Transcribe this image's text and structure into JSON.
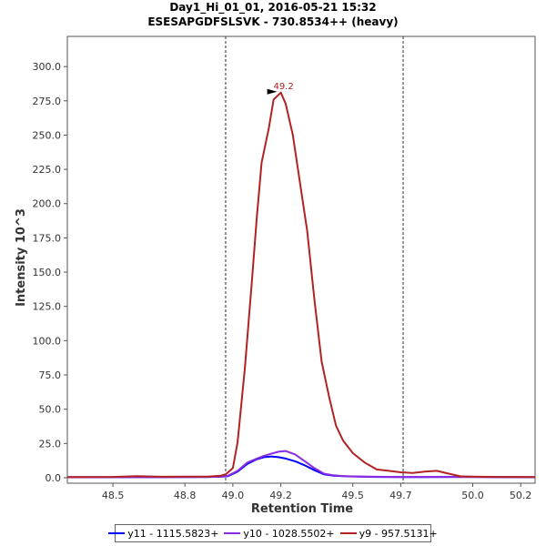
{
  "chart_data": {
    "type": "line",
    "title": "Day1_Hi_01_01, 2016-05-21 15:32",
    "subtitle": "ESESAPGDFSLSVK - 730.8534++ (heavy)",
    "xlabel": "Retention Time",
    "ylabel": "Intensity 10^3",
    "xlim": [
      48.31,
      50.26
    ],
    "ylim": [
      -4,
      322
    ],
    "xticks": [
      48.5,
      48.8,
      49.0,
      49.2,
      49.5,
      49.7,
      50.0,
      50.2
    ],
    "xtick_labels": [
      "48.5",
      "48.8",
      "49.0",
      "49.2",
      "49.5",
      "49.7",
      "50.0",
      "50.2"
    ],
    "yticks": [
      0,
      25,
      50,
      75,
      100,
      125,
      150,
      175,
      200,
      225,
      250,
      275,
      300
    ],
    "ytick_labels": [
      "0.0",
      "25.0",
      "50.0",
      "75.0",
      "100.0",
      "125.0",
      "150.0",
      "175.0",
      "200.0",
      "225.0",
      "250.0",
      "275.0",
      "300.0"
    ],
    "boundaries": [
      48.97,
      49.71
    ],
    "peak_annotation": {
      "label": "49.2",
      "x": 49.2,
      "y": 281,
      "color": "#b22222"
    },
    "series": [
      {
        "name": "y11 - 1115.5823+",
        "color": "#0000ff",
        "x": [
          48.31,
          48.8,
          48.9,
          48.95,
          48.98,
          49.02,
          49.06,
          49.1,
          49.13,
          49.16,
          49.19,
          49.22,
          49.26,
          49.3,
          49.34,
          49.38,
          49.42,
          49.46,
          49.5,
          49.55,
          49.6,
          49.7,
          49.8,
          49.9,
          50.0,
          50.1,
          50.26
        ],
        "values": [
          0.4,
          0.5,
          0.6,
          0.7,
          1.2,
          4.5,
          10,
          13.5,
          15,
          15.5,
          15,
          14,
          12,
          9,
          5.5,
          2.5,
          1.5,
          1.2,
          0.9,
          0.7,
          0.6,
          0.5,
          0.5,
          0.6,
          0.6,
          0.5,
          0.4
        ]
      },
      {
        "name": "y10 - 1028.5502+",
        "color": "#8a2be2",
        "x": [
          48.31,
          48.8,
          48.9,
          48.95,
          48.98,
          49.02,
          49.06,
          49.1,
          49.13,
          49.16,
          49.19,
          49.22,
          49.26,
          49.3,
          49.34,
          49.38,
          49.42,
          49.46,
          49.5,
          49.55,
          49.6,
          49.7,
          49.8,
          49.9,
          50.0,
          50.1,
          50.26
        ],
        "values": [
          0.4,
          0.5,
          0.6,
          0.8,
          1.5,
          5,
          11,
          14,
          16,
          17.5,
          19,
          19.5,
          17,
          12,
          7,
          3,
          1.8,
          1.2,
          1,
          0.8,
          0.7,
          0.6,
          0.6,
          0.6,
          0.6,
          0.5,
          0.4
        ]
      },
      {
        "name": "y9 - 957.5131+",
        "color": "#b22222",
        "x": [
          48.31,
          48.5,
          48.6,
          48.7,
          48.8,
          48.9,
          48.95,
          48.97,
          49.0,
          49.02,
          49.05,
          49.08,
          49.1,
          49.12,
          49.15,
          49.17,
          49.2,
          49.22,
          49.25,
          49.28,
          49.31,
          49.34,
          49.37,
          49.4,
          49.43,
          49.46,
          49.5,
          49.55,
          49.6,
          49.65,
          49.7,
          49.75,
          49.8,
          49.85,
          49.9,
          49.95,
          50.0,
          50.1,
          50.26
        ],
        "values": [
          0.5,
          0.6,
          1.2,
          0.7,
          0.8,
          0.9,
          1.5,
          2.5,
          7,
          26,
          80,
          145,
          190,
          230,
          255,
          276,
          281,
          273,
          250,
          215,
          180,
          130,
          85,
          60,
          38,
          27,
          18,
          11,
          6,
          5,
          4,
          3.5,
          4.5,
          5,
          3,
          1,
          0.8,
          0.6,
          0.5
        ]
      }
    ]
  }
}
